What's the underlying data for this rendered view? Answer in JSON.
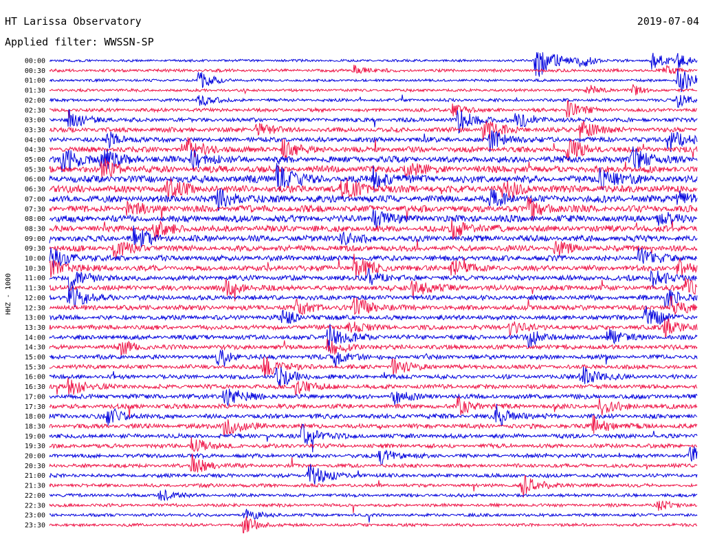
{
  "chart_data": {
    "type": "line",
    "title": "HT Larissa Observatory",
    "date": "2019-07-04",
    "subtitle": "Applied filter: WWSSN-SP",
    "ylabel": "HHZ - 1000",
    "trace_colors": [
      "#0000dd",
      "#ee1144"
    ],
    "rows": [
      {
        "label": "00:00",
        "activity": 0.15,
        "events": [
          {
            "pos": 0.75,
            "amp": 2.6
          },
          {
            "pos": 0.82,
            "amp": 0.8
          },
          {
            "pos": 0.93,
            "amp": 1.2
          },
          {
            "pos": 0.97,
            "amp": 0.8
          }
        ]
      },
      {
        "label": "00:30",
        "activity": 0.25,
        "events": [
          {
            "pos": 0.47,
            "amp": 0.8
          },
          {
            "pos": 0.95,
            "amp": 0.6
          }
        ]
      },
      {
        "label": "01:00",
        "activity": 0.18,
        "events": [
          {
            "pos": 0.23,
            "amp": 1.2
          },
          {
            "pos": 0.97,
            "amp": 1.8
          }
        ]
      },
      {
        "label": "01:30",
        "activity": 0.22,
        "events": [
          {
            "pos": 0.83,
            "amp": 0.8
          },
          {
            "pos": 0.9,
            "amp": 0.7
          }
        ]
      },
      {
        "label": "02:00",
        "activity": 0.25,
        "events": [
          {
            "pos": 0.23,
            "amp": 1.0
          },
          {
            "pos": 0.97,
            "amp": 1.0
          }
        ]
      },
      {
        "label": "02:30",
        "activity": 0.35,
        "events": [
          {
            "pos": 0.62,
            "amp": 0.9
          },
          {
            "pos": 0.8,
            "amp": 1.2
          }
        ]
      },
      {
        "label": "03:00",
        "activity": 0.45,
        "events": [
          {
            "pos": 0.03,
            "amp": 1.5
          },
          {
            "pos": 0.63,
            "amp": 1.8
          },
          {
            "pos": 0.72,
            "amp": 1.4
          }
        ]
      },
      {
        "label": "03:30",
        "activity": 0.55,
        "events": [
          {
            "pos": 0.32,
            "amp": 1.0
          },
          {
            "pos": 0.67,
            "amp": 1.6
          },
          {
            "pos": 0.82,
            "amp": 1.3
          }
        ]
      },
      {
        "label": "04:00",
        "activity": 0.6,
        "events": [
          {
            "pos": 0.09,
            "amp": 1.0
          },
          {
            "pos": 0.68,
            "amp": 1.4
          },
          {
            "pos": 0.96,
            "amp": 1.5
          }
        ]
      },
      {
        "label": "04:30",
        "activity": 0.7,
        "events": [
          {
            "pos": 0.21,
            "amp": 1.6
          },
          {
            "pos": 0.36,
            "amp": 1.3
          },
          {
            "pos": 0.8,
            "amp": 1.4
          }
        ]
      },
      {
        "label": "05:00",
        "activity": 0.85,
        "events": [
          {
            "pos": 0.02,
            "amp": 1.8
          },
          {
            "pos": 0.08,
            "amp": 1.6
          },
          {
            "pos": 0.22,
            "amp": 1.5
          },
          {
            "pos": 0.9,
            "amp": 1.6
          }
        ]
      },
      {
        "label": "05:30",
        "activity": 0.9,
        "events": [
          {
            "pos": 0.08,
            "amp": 1.4
          },
          {
            "pos": 0.55,
            "amp": 1.2
          }
        ]
      },
      {
        "label": "06:00",
        "activity": 1.0,
        "events": [
          {
            "pos": 0.35,
            "amp": 2.0
          },
          {
            "pos": 0.5,
            "amp": 1.4
          },
          {
            "pos": 0.85,
            "amp": 1.5
          }
        ]
      },
      {
        "label": "06:30",
        "activity": 1.0,
        "events": [
          {
            "pos": 0.18,
            "amp": 1.5
          },
          {
            "pos": 0.45,
            "amp": 1.8
          },
          {
            "pos": 0.7,
            "amp": 1.2
          }
        ]
      },
      {
        "label": "07:00",
        "activity": 0.95,
        "events": [
          {
            "pos": 0.26,
            "amp": 1.4
          },
          {
            "pos": 0.68,
            "amp": 1.3
          },
          {
            "pos": 0.97,
            "amp": 1.2
          }
        ]
      },
      {
        "label": "07:30",
        "activity": 0.9,
        "events": [
          {
            "pos": 0.12,
            "amp": 1.2
          },
          {
            "pos": 0.74,
            "amp": 1.5
          }
        ]
      },
      {
        "label": "08:00",
        "activity": 0.9,
        "events": [
          {
            "pos": 0.5,
            "amp": 1.3
          },
          {
            "pos": 0.94,
            "amp": 1.1
          }
        ]
      },
      {
        "label": "08:30",
        "activity": 0.85,
        "events": [
          {
            "pos": 0.16,
            "amp": 1.4
          },
          {
            "pos": 0.62,
            "amp": 1.4
          }
        ]
      },
      {
        "label": "09:00",
        "activity": 0.8,
        "events": [
          {
            "pos": 0.13,
            "amp": 1.5
          },
          {
            "pos": 0.45,
            "amp": 1.2
          }
        ]
      },
      {
        "label": "09:30",
        "activity": 0.75,
        "events": [
          {
            "pos": 0.1,
            "amp": 1.2
          },
          {
            "pos": 0.78,
            "amp": 1.0
          }
        ]
      },
      {
        "label": "10:00",
        "activity": 0.7,
        "events": [
          {
            "pos": 0.0,
            "amp": 1.6
          },
          {
            "pos": 0.91,
            "amp": 1.4
          }
        ]
      },
      {
        "label": "10:30",
        "activity": 0.7,
        "events": [
          {
            "pos": 0.0,
            "amp": 1.4
          },
          {
            "pos": 0.47,
            "amp": 1.6
          },
          {
            "pos": 0.62,
            "amp": 1.3
          },
          {
            "pos": 0.97,
            "amp": 1.2
          }
        ]
      },
      {
        "label": "11:00",
        "activity": 0.65,
        "events": [
          {
            "pos": 0.03,
            "amp": 1.6
          },
          {
            "pos": 0.49,
            "amp": 1.2
          },
          {
            "pos": 0.93,
            "amp": 1.3
          }
        ]
      },
      {
        "label": "11:30",
        "activity": 0.65,
        "events": [
          {
            "pos": 0.27,
            "amp": 1.2
          },
          {
            "pos": 0.56,
            "amp": 1.4
          },
          {
            "pos": 0.98,
            "amp": 1.5
          }
        ]
      },
      {
        "label": "12:00",
        "activity": 0.6,
        "events": [
          {
            "pos": 0.03,
            "amp": 1.7
          },
          {
            "pos": 0.95,
            "amp": 1.6
          }
        ]
      },
      {
        "label": "12:30",
        "activity": 0.6,
        "events": [
          {
            "pos": 0.38,
            "amp": 1.2
          },
          {
            "pos": 0.47,
            "amp": 1.5
          },
          {
            "pos": 0.96,
            "amp": 1.3
          }
        ]
      },
      {
        "label": "13:00",
        "activity": 0.55,
        "events": [
          {
            "pos": 0.36,
            "amp": 1.0
          },
          {
            "pos": 0.92,
            "amp": 1.4
          }
        ]
      },
      {
        "label": "13:30",
        "activity": 0.55,
        "events": [
          {
            "pos": 0.46,
            "amp": 1.0
          },
          {
            "pos": 0.71,
            "amp": 1.1
          },
          {
            "pos": 0.95,
            "amp": 1.2
          }
        ]
      },
      {
        "label": "14:00",
        "activity": 0.55,
        "events": [
          {
            "pos": 0.43,
            "amp": 1.8
          },
          {
            "pos": 0.74,
            "amp": 1.2
          },
          {
            "pos": 0.86,
            "amp": 1.2
          }
        ]
      },
      {
        "label": "14:30",
        "activity": 0.55,
        "events": [
          {
            "pos": 0.11,
            "amp": 1.0
          },
          {
            "pos": 0.43,
            "amp": 1.3
          }
        ]
      },
      {
        "label": "15:00",
        "activity": 0.5,
        "events": [
          {
            "pos": 0.26,
            "amp": 1.0
          },
          {
            "pos": 0.44,
            "amp": 1.2
          }
        ]
      },
      {
        "label": "15:30",
        "activity": 0.5,
        "events": [
          {
            "pos": 0.33,
            "amp": 1.5
          },
          {
            "pos": 0.53,
            "amp": 1.2
          }
        ]
      },
      {
        "label": "16:00",
        "activity": 0.5,
        "events": [
          {
            "pos": 0.35,
            "amp": 1.6
          },
          {
            "pos": 0.82,
            "amp": 1.5
          }
        ]
      },
      {
        "label": "16:30",
        "activity": 0.5,
        "events": [
          {
            "pos": 0.03,
            "amp": 1.4
          },
          {
            "pos": 0.38,
            "amp": 1.2
          }
        ]
      },
      {
        "label": "17:00",
        "activity": 0.55,
        "events": [
          {
            "pos": 0.27,
            "amp": 1.6
          },
          {
            "pos": 0.53,
            "amp": 1.1
          }
        ]
      },
      {
        "label": "17:30",
        "activity": 0.55,
        "events": [
          {
            "pos": 0.63,
            "amp": 1.2
          },
          {
            "pos": 0.85,
            "amp": 1.2
          }
        ]
      },
      {
        "label": "18:00",
        "activity": 0.55,
        "events": [
          {
            "pos": 0.09,
            "amp": 1.2
          },
          {
            "pos": 0.69,
            "amp": 1.5
          }
        ]
      },
      {
        "label": "18:30",
        "activity": 0.55,
        "events": [
          {
            "pos": 0.27,
            "amp": 1.5
          },
          {
            "pos": 0.84,
            "amp": 1.4
          }
        ]
      },
      {
        "label": "19:00",
        "activity": 0.5,
        "events": [
          {
            "pos": 0.39,
            "amp": 1.6
          }
        ]
      },
      {
        "label": "19:30",
        "activity": 0.45,
        "events": [
          {
            "pos": 0.22,
            "amp": 1.2
          }
        ]
      },
      {
        "label": "20:00",
        "activity": 0.45,
        "events": [
          {
            "pos": 0.51,
            "amp": 1.2
          },
          {
            "pos": 0.99,
            "amp": 1.4
          }
        ]
      },
      {
        "label": "20:30",
        "activity": 0.4,
        "events": [
          {
            "pos": 0.22,
            "amp": 1.4
          }
        ]
      },
      {
        "label": "21:00",
        "activity": 0.4,
        "events": [
          {
            "pos": 0.4,
            "amp": 1.8
          }
        ]
      },
      {
        "label": "21:30",
        "activity": 0.35,
        "events": [
          {
            "pos": 0.73,
            "amp": 1.6
          }
        ]
      },
      {
        "label": "22:00",
        "activity": 0.3,
        "events": [
          {
            "pos": 0.17,
            "amp": 0.9
          }
        ]
      },
      {
        "label": "22:30",
        "activity": 0.28,
        "events": [
          {
            "pos": 0.94,
            "amp": 0.8
          }
        ]
      },
      {
        "label": "23:00",
        "activity": 0.25,
        "events": [
          {
            "pos": 0.3,
            "amp": 1.0
          }
        ]
      },
      {
        "label": "23:30",
        "activity": 0.25,
        "events": [
          {
            "pos": 0.3,
            "amp": 1.2
          }
        ]
      }
    ]
  }
}
